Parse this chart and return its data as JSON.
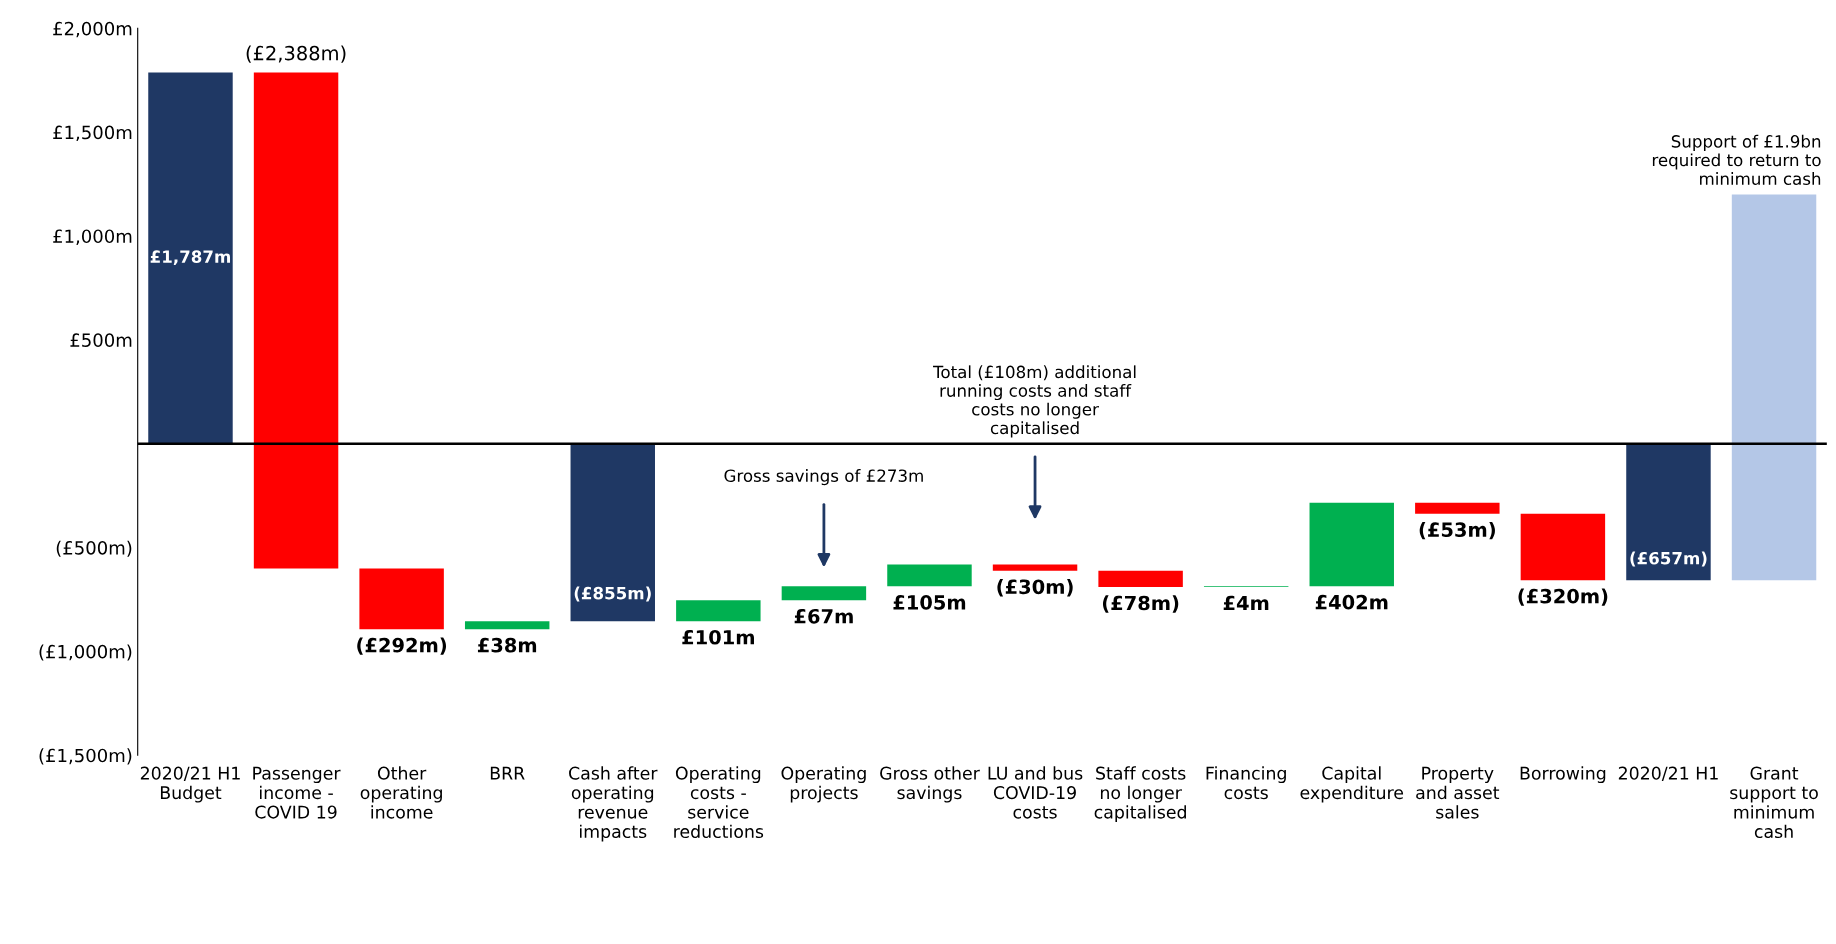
{
  "chart_data": {
    "type": "bar",
    "categories": [
      "2020/21 H1\nBudget",
      "Passenger\nincome -\nCOVID 19",
      "Other\noperating\nincome",
      "BRR",
      "Cash after\noperating\nrevenue\nimpacts",
      "Operating\ncosts -\nservice\nreductions",
      "Operating\nprojects",
      "Gross other\nsavings",
      "LU and bus\nCOVID-19\ncosts",
      "Staff costs\nno longer\ncapitalised",
      "Financing\ncosts",
      "Capital\nexpenditure",
      "Property\nand asset\nsales",
      "Borrowing",
      "2020/21 H1",
      "Grant\nsupport to\nminimum\ncash"
    ],
    "base": [
      0,
      1787,
      -601,
      -893,
      0,
      -855,
      -754,
      -687,
      -582,
      -612,
      -690,
      -686,
      -284,
      -337,
      0,
      -657
    ],
    "values": [
      1787,
      -2388,
      -292,
      38,
      -855,
      101,
      67,
      105,
      -30,
      -78,
      4,
      402,
      -53,
      -320,
      -657,
      1857
    ],
    "colors": [
      "#1f3864",
      "#ff0000",
      "#ff0000",
      "#00b050",
      "#1f3864",
      "#00b050",
      "#00b050",
      "#00b050",
      "#ff0000",
      "#ff0000",
      "#00b050",
      "#00b050",
      "#ff0000",
      "#ff0000",
      "#1f3864",
      "#b4c7e7"
    ],
    "value_labels": [
      "£1,787m",
      "(£2,388m)",
      "(£292m)",
      "£38m",
      "(£855m)",
      "£101m",
      "£67m",
      "£105m",
      "(£30m)",
      "(£78m)",
      "£4m",
      "£402m",
      "(£53m)",
      "(£320m)",
      "(£657m)",
      null
    ],
    "ylim": [
      -1500,
      2000
    ],
    "yticks": [
      {
        "value": -1500,
        "label": "(£1,500m)"
      },
      {
        "value": -1000,
        "label": "(£1,000m)"
      },
      {
        "value": -500,
        "label": "(£500m)"
      },
      {
        "value": 0,
        "label": null
      },
      {
        "value": 500,
        "label": "£500m"
      },
      {
        "value": 1000,
        "label": "£1,000m"
      },
      {
        "value": 1500,
        "label": "£1,500m"
      },
      {
        "value": 2000,
        "label": "£2,000m"
      }
    ],
    "ref_lines": [
      {
        "axis": "y",
        "value": 0,
        "label": null,
        "color": "#000000"
      }
    ],
    "annotations": [
      "Gross savings of £273m",
      "Total (£108m) additional\nrunning costs and staff\ncosts no longer\ncapitalised",
      "Support of £1.9bn\nrequired to return to\nminimum cash"
    ],
    "grid": false
  }
}
